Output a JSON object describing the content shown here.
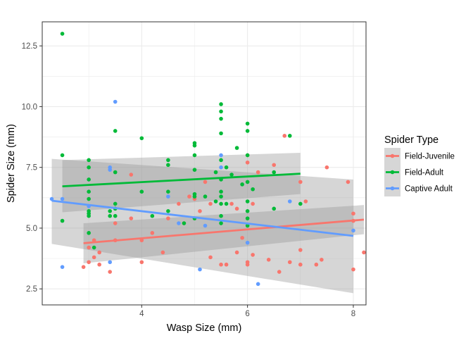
{
  "chart_data": {
    "type": "scatter",
    "xlabel": "Wasp Size (mm)",
    "ylabel": "Spider Size (mm)",
    "xlim": [
      2.12,
      8.24
    ],
    "ylim": [
      1.84,
      13.49
    ],
    "xticks": [
      4,
      6,
      8
    ],
    "yticks": [
      2.5,
      5.0,
      7.5,
      10.0,
      12.5
    ],
    "ytick_labels": [
      "2.5",
      "5.0",
      "7.5",
      "10.0",
      "12.5"
    ],
    "grid": true,
    "legend": {
      "title": "Spider Type",
      "placement": "right"
    },
    "series": [
      {
        "name": "Field-Juvenile",
        "color": "#F8766D",
        "points": [
          [
            2.9,
            3.4
          ],
          [
            3.0,
            3.6
          ],
          [
            3.0,
            4.2
          ],
          [
            3.1,
            3.8
          ],
          [
            3.1,
            4.5
          ],
          [
            3.2,
            3.5
          ],
          [
            3.2,
            4.0
          ],
          [
            3.4,
            3.2
          ],
          [
            3.5,
            4.5
          ],
          [
            3.5,
            5.2
          ],
          [
            3.8,
            5.4
          ],
          [
            3.8,
            7.2
          ],
          [
            4.0,
            3.6
          ],
          [
            4.0,
            4.5
          ],
          [
            4.2,
            4.8
          ],
          [
            4.4,
            4.0
          ],
          [
            4.5,
            5.4
          ],
          [
            4.7,
            6.0
          ],
          [
            4.8,
            5.2
          ],
          [
            4.9,
            6.3
          ],
          [
            5.0,
            6.2
          ],
          [
            5.1,
            5.7
          ],
          [
            5.2,
            6.9
          ],
          [
            5.3,
            6.0
          ],
          [
            5.3,
            3.8
          ],
          [
            5.5,
            3.5
          ],
          [
            5.6,
            3.5
          ],
          [
            5.7,
            6.0
          ],
          [
            5.8,
            5.8
          ],
          [
            5.8,
            4.0
          ],
          [
            5.9,
            4.6
          ],
          [
            6.0,
            3.5
          ],
          [
            6.0,
            3.6
          ],
          [
            6.0,
            7.7
          ],
          [
            6.0,
            8.0
          ],
          [
            6.1,
            6.0
          ],
          [
            6.1,
            3.9
          ],
          [
            6.2,
            7.3
          ],
          [
            6.4,
            3.7
          ],
          [
            6.5,
            7.6
          ],
          [
            6.6,
            3.2
          ],
          [
            6.7,
            8.8
          ],
          [
            6.8,
            3.6
          ],
          [
            7.0,
            3.5
          ],
          [
            7.0,
            4.1
          ],
          [
            7.0,
            6.9
          ],
          [
            7.1,
            6.1
          ],
          [
            7.3,
            3.5
          ],
          [
            7.4,
            3.7
          ],
          [
            7.5,
            7.5
          ],
          [
            7.9,
            6.9
          ],
          [
            8.0,
            3.3
          ],
          [
            8.0,
            5.3
          ],
          [
            8.0,
            5.6
          ],
          [
            8.2,
            4.0
          ]
        ]
      },
      {
        "name": "Field-Adult",
        "color": "#00BA38",
        "points": [
          [
            2.5,
            13.0
          ],
          [
            2.5,
            8.0
          ],
          [
            2.5,
            5.3
          ],
          [
            3.0,
            7.8
          ],
          [
            3.0,
            7.5
          ],
          [
            3.0,
            7.0
          ],
          [
            3.0,
            6.5
          ],
          [
            3.0,
            6.2
          ],
          [
            3.0,
            5.7
          ],
          [
            3.0,
            5.6
          ],
          [
            3.0,
            5.5
          ],
          [
            3.0,
            4.8
          ],
          [
            3.1,
            4.2
          ],
          [
            3.4,
            5.7
          ],
          [
            3.4,
            5.5
          ],
          [
            3.5,
            9.0
          ],
          [
            3.5,
            7.3
          ],
          [
            3.5,
            6.0
          ],
          [
            3.5,
            5.8
          ],
          [
            3.5,
            5.5
          ],
          [
            4.0,
            8.7
          ],
          [
            4.0,
            6.5
          ],
          [
            4.2,
            5.5
          ],
          [
            4.5,
            7.8
          ],
          [
            4.5,
            7.6
          ],
          [
            4.5,
            6.5
          ],
          [
            4.5,
            5.7
          ],
          [
            4.8,
            5.2
          ],
          [
            5.0,
            8.5
          ],
          [
            5.0,
            8.4
          ],
          [
            5.0,
            8.0
          ],
          [
            5.0,
            7.4
          ],
          [
            5.0,
            6.4
          ],
          [
            5.0,
            6.3
          ],
          [
            5.0,
            5.4
          ],
          [
            5.2,
            6.3
          ],
          [
            5.4,
            7.3
          ],
          [
            5.4,
            6.1
          ],
          [
            5.5,
            10.1
          ],
          [
            5.5,
            9.8
          ],
          [
            5.5,
            9.5
          ],
          [
            5.5,
            8.9
          ],
          [
            5.5,
            7.8
          ],
          [
            5.5,
            7.0
          ],
          [
            5.5,
            6.5
          ],
          [
            5.5,
            6.3
          ],
          [
            5.5,
            6.0
          ],
          [
            5.5,
            5.5
          ],
          [
            5.5,
            5.2
          ],
          [
            5.6,
            7.5
          ],
          [
            5.6,
            6.0
          ],
          [
            5.7,
            7.2
          ],
          [
            5.8,
            8.3
          ],
          [
            5.9,
            6.8
          ],
          [
            6.0,
            9.3
          ],
          [
            6.0,
            9.0
          ],
          [
            6.0,
            8.0
          ],
          [
            6.0,
            6.9
          ],
          [
            6.0,
            6.1
          ],
          [
            6.0,
            5.7
          ],
          [
            6.0,
            5.4
          ],
          [
            6.0,
            5.1
          ],
          [
            6.1,
            6.6
          ],
          [
            6.5,
            7.3
          ],
          [
            6.5,
            5.8
          ],
          [
            6.8,
            8.8
          ],
          [
            7.0,
            6.0
          ]
        ]
      },
      {
        "name": "Captive Adult",
        "color": "#619CFF",
        "points": [
          [
            2.3,
            6.2
          ],
          [
            2.5,
            6.2
          ],
          [
            2.5,
            3.4
          ],
          [
            3.0,
            5.9
          ],
          [
            3.4,
            7.5
          ],
          [
            3.4,
            7.4
          ],
          [
            3.4,
            3.6
          ],
          [
            3.5,
            10.2
          ],
          [
            4.5,
            6.3
          ],
          [
            4.7,
            5.2
          ],
          [
            5.1,
            3.3
          ],
          [
            5.2,
            5.1
          ],
          [
            5.5,
            8.0
          ],
          [
            5.5,
            7.5
          ],
          [
            6.0,
            4.4
          ],
          [
            6.2,
            2.7
          ],
          [
            6.8,
            6.1
          ],
          [
            8.0,
            4.9
          ]
        ]
      }
    ],
    "fits": [
      {
        "series": "Field-Juvenile",
        "x": [
          2.9,
          8.2
        ],
        "y": [
          4.38,
          5.35
        ],
        "band_lower": [
          3.55,
          4.75
        ],
        "band_upper": [
          5.2,
          5.95
        ]
      },
      {
        "series": "Field-Adult",
        "x": [
          2.5,
          7.0
        ],
        "y": [
          6.72,
          7.24
        ],
        "band_lower": [
          5.65,
          6.4
        ],
        "band_upper": [
          7.8,
          8.1
        ]
      },
      {
        "series": "Captive Adult",
        "x": [
          2.3,
          8.0
        ],
        "y": [
          6.13,
          4.68
        ],
        "band_lower": [
          4.35,
          2.32
        ],
        "band_upper": [
          7.85,
          7.0
        ]
      }
    ]
  }
}
